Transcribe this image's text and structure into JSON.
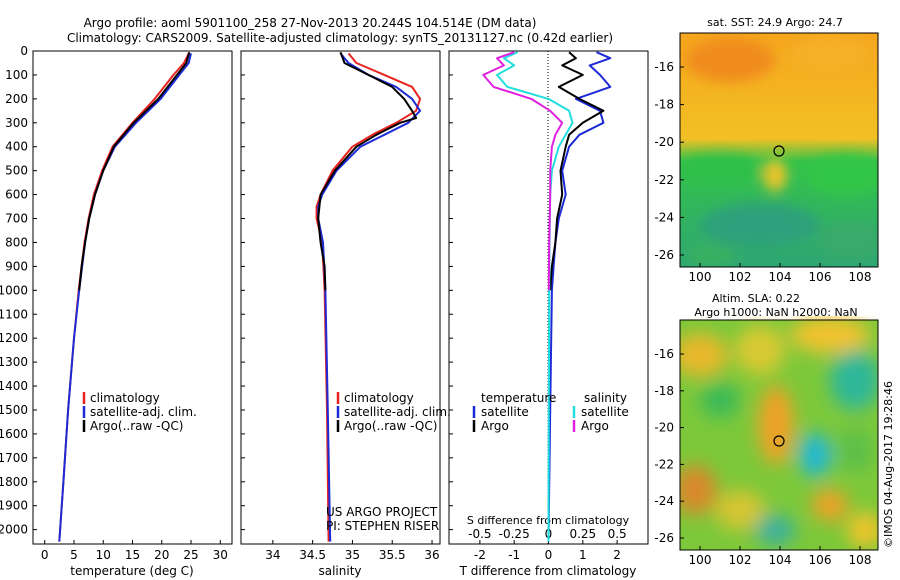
{
  "title": {
    "line1": "Argo profile: aoml 5901100_258 27-Nov-2013 20.244S 104.514E (DM data)",
    "line2": "Climatology: CARS2009. Satellite-adjusted climatology: synTS_20131127.nc (0.42d earlier)"
  },
  "colors": {
    "climatology": "#e8231f",
    "satellite": "#1d2bd6",
    "argo": "#000000",
    "salinity_sat": "#22dede",
    "salinity_argo": "#e020e0"
  },
  "side_text": {
    "timestamp": "©IMOS 04-Aug-2017 19:28:46"
  },
  "depth_axis": {
    "ticks": [
      "0",
      "100",
      "200",
      "300",
      "400",
      "500",
      "600",
      "700",
      "800",
      "900",
      "1000",
      "1100",
      "1200",
      "1300",
      "1400",
      "1500",
      "1600",
      "1700",
      "1800",
      "1900",
      "2000"
    ]
  },
  "legend_temp": {
    "items": [
      "climatology",
      "satellite-adj. clim.",
      "Argo(..raw -QC)"
    ]
  },
  "legend_sal": {
    "items": [
      "climatology",
      "satellite-adj. clim.",
      "Argo(..raw -QC)"
    ]
  },
  "project_note": {
    "line1": "US ARGO PROJECT",
    "line2": "PI: STEPHEN RISER"
  },
  "legend_diff": {
    "temperature": "temperature",
    "salinity": "salinity",
    "satellite": "satellite",
    "argo": "Argo"
  },
  "map_sst": {
    "title": "sat. SST: 24.9 Argo: 24.7",
    "yticks": [
      "-16",
      "-18",
      "-20",
      "-22",
      "-24",
      "-26"
    ],
    "xticks": [
      "100",
      "102",
      "104",
      "106",
      "108"
    ]
  },
  "map_sla": {
    "title1": "Altim. SLA: 0.22",
    "title2": "Argo h1000: NaN h2000: NaN",
    "yticks": [
      "-16",
      "-18",
      "-20",
      "-22",
      "-24",
      "-26"
    ],
    "xticks": [
      "100",
      "102",
      "104",
      "106",
      "108"
    ]
  },
  "chart_data": [
    {
      "type": "line",
      "xlabel": "temperature (deg C)",
      "xticks": [
        "0",
        "5",
        "10",
        "15",
        "20",
        "25",
        "30"
      ],
      "xlim": [
        -2,
        32
      ],
      "ylim": [
        0,
        2060
      ],
      "series": [
        {
          "name": "climatology",
          "color": "#e8231f",
          "depth": [
            10,
            50,
            100,
            200,
            300,
            400,
            500,
            600,
            700,
            800,
            1000,
            1200,
            1500,
            1800,
            2050
          ],
          "values": [
            24.6,
            23.8,
            22.0,
            18.8,
            15.0,
            11.6,
            9.8,
            8.4,
            7.5,
            6.8,
            5.8,
            5.0,
            4.0,
            3.2,
            2.5
          ]
        },
        {
          "name": "satellite-adj. clim.",
          "color": "#1d2bd6",
          "depth": [
            10,
            50,
            100,
            200,
            300,
            400,
            500,
            600,
            700,
            800,
            1000,
            1200,
            1500,
            1800,
            2050
          ],
          "values": [
            25.0,
            24.6,
            23.0,
            19.8,
            15.6,
            12.0,
            10.0,
            8.6,
            7.6,
            6.9,
            5.9,
            5.0,
            4.0,
            3.2,
            2.5
          ]
        },
        {
          "name": "Argo(..raw -QC)",
          "color": "#000000",
          "depth": [
            5,
            50,
            100,
            200,
            300,
            400,
            500,
            600,
            700,
            800,
            900,
            1000
          ],
          "values": [
            24.7,
            24.2,
            22.6,
            19.4,
            15.2,
            11.8,
            10.0,
            8.6,
            7.6,
            6.9,
            6.3,
            5.9
          ]
        }
      ]
    },
    {
      "type": "line",
      "xlabel": "salinity",
      "xticks": [
        "34",
        "34.5",
        "35",
        "35.5",
        "36"
      ],
      "xlim": [
        33.6,
        36.1
      ],
      "ylim": [
        0,
        2060
      ],
      "series": [
        {
          "name": "climatology",
          "color": "#e8231f",
          "depth": [
            10,
            50,
            100,
            150,
            200,
            250,
            300,
            350,
            400,
            500,
            600,
            650,
            700,
            800,
            1000,
            1500,
            2050
          ],
          "values": [
            34.95,
            35.05,
            35.4,
            35.75,
            35.85,
            35.8,
            35.55,
            35.25,
            35.0,
            34.75,
            34.6,
            34.55,
            34.55,
            34.62,
            34.65,
            34.68,
            34.7
          ]
        },
        {
          "name": "satellite-adj. clim.",
          "color": "#1d2bd6",
          "depth": [
            10,
            50,
            100,
            150,
            200,
            250,
            300,
            350,
            400,
            500,
            600,
            650,
            700,
            800,
            1000,
            1500,
            2050
          ],
          "values": [
            34.85,
            34.95,
            35.2,
            35.55,
            35.75,
            35.85,
            35.7,
            35.4,
            35.1,
            34.8,
            34.62,
            34.57,
            34.57,
            34.63,
            34.66,
            34.69,
            34.72
          ]
        },
        {
          "name": "Argo(..raw -QC)",
          "color": "#000000",
          "depth": [
            5,
            50,
            100,
            150,
            200,
            250,
            280,
            300,
            350,
            400,
            500,
            600,
            700,
            800,
            900,
            1000
          ],
          "values": [
            34.85,
            34.9,
            35.2,
            35.5,
            35.65,
            35.75,
            35.8,
            35.6,
            35.3,
            35.05,
            34.78,
            34.6,
            34.57,
            34.6,
            34.65,
            34.66
          ]
        }
      ]
    },
    {
      "type": "line",
      "xlabel": "T difference from climatology",
      "xlabel_top": "S difference from climatology",
      "xticks": [
        "-2",
        "-1",
        "0",
        "1",
        "2"
      ],
      "xticks_top": [
        "-0.5",
        "-0.25",
        "0",
        "0.25",
        "0.5"
      ],
      "xlim": [
        -2.9,
        2.9
      ],
      "ylim": [
        0,
        2060
      ],
      "series": [
        {
          "name": "temperature satellite",
          "color": "#1d2bd6",
          "depth": [
            5,
            30,
            60,
            100,
            150,
            200,
            250,
            300,
            350,
            400,
            500,
            600,
            700,
            800,
            900,
            1000,
            1500,
            2050
          ],
          "values": [
            1.4,
            1.8,
            1.2,
            1.5,
            1.8,
            0.8,
            1.5,
            1.6,
            0.9,
            0.6,
            0.4,
            0.5,
            0.3,
            0.2,
            0.15,
            0.1,
            0.05,
            0.0
          ]
        },
        {
          "name": "temperature Argo",
          "color": "#000000",
          "depth": [
            5,
            30,
            60,
            100,
            150,
            200,
            250,
            300,
            350,
            400,
            500,
            600,
            700,
            800,
            900,
            1000
          ],
          "values": [
            0.6,
            0.8,
            0.4,
            1.0,
            0.3,
            0.9,
            1.6,
            1.0,
            0.6,
            0.5,
            0.35,
            0.4,
            0.25,
            0.2,
            0.1,
            0.05
          ]
        },
        {
          "name": "salinity satellite",
          "color": "#22dede",
          "depth": [
            5,
            30,
            60,
            100,
            150,
            200,
            250,
            300,
            350,
            400,
            500,
            600,
            800,
            1000,
            1500,
            2050
          ],
          "values": [
            -0.9,
            -1.3,
            -1.0,
            -1.5,
            -1.2,
            0.0,
            0.6,
            0.7,
            0.5,
            0.3,
            0.1,
            0.05,
            0.03,
            0.02,
            0.01,
            0.0
          ]
        },
        {
          "name": "salinity Argo",
          "color": "#e020e0",
          "depth": [
            5,
            30,
            60,
            100,
            150,
            200,
            250,
            300,
            350,
            400,
            500,
            600,
            800,
            1000
          ],
          "values": [
            -1.0,
            -1.5,
            -1.3,
            -1.9,
            -1.6,
            -0.5,
            0.05,
            0.4,
            0.2,
            0.1,
            0.05,
            0.05,
            0.02,
            0.01
          ]
        }
      ]
    }
  ]
}
